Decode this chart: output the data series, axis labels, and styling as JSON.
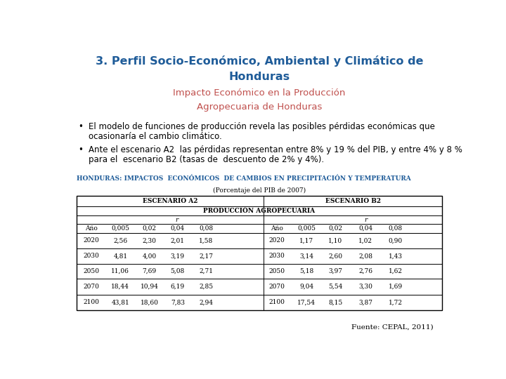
{
  "title_line1": "3. Perfil Socio-Económico, Ambiental y Climático de",
  "title_line2": "Honduras",
  "subtitle_line1": "Impacto Económico en la Producción",
  "subtitle_line2": "Agropecuaria de Honduras",
  "title_color": "#1F5C99",
  "subtitle_color": "#C0504D",
  "bullet1_line1": "El modelo de funciones de producción revela las posibles pérdidas económicas que",
  "bullet1_line2": "ocasionaría el cambio climático.",
  "bullet2_line1": "Ante el escenario A2  las pérdidas representan entre 8% y 19 % del PIB, y entre 4% y 8 %",
  "bullet2_line2": "para el  escenario B2 (tasas de  descuento de 2% y 4%).",
  "table_title": "HONDURAS: IMPACTOS  ECONÓMICOS  DE CAMBIOS EN PRECIPITACIÓN Y TEMPERATURA",
  "table_subtitle": "(Porcentaje del PIB de 2007)",
  "table_title_color": "#1F5C99",
  "background_color": "#FFFFFF",
  "source_text": "Fuente: CEPAL, 2011)",
  "escenario_a2_header": "ESCENARIO A2",
  "escenario_b2_header": "ESCENARIO B2",
  "produccion_header": "PRODUCCIÓN AGROPECUARIA",
  "col_headers_a2": [
    "Año",
    "0,005",
    "0,02",
    "0,04",
    "0,08"
  ],
  "col_headers_b2": [
    "Año",
    "0,005",
    "0,02",
    "0,04",
    "0,08"
  ],
  "r_label": "r",
  "rows_a2": [
    [
      "2020",
      "2,56",
      "2,30",
      "2,01",
      "1,58"
    ],
    [
      "2030",
      "4,81",
      "4,00",
      "3,19",
      "2,17"
    ],
    [
      "2050",
      "11,06",
      "7,69",
      "5,08",
      "2,71"
    ],
    [
      "2070",
      "18,44",
      "10,94",
      "6,19",
      "2,85"
    ],
    [
      "2100",
      "43,81",
      "18,60",
      "7,83",
      "2,94"
    ]
  ],
  "rows_b2": [
    [
      "2020",
      "1,17",
      "1,10",
      "1,02",
      "0,90"
    ],
    [
      "2030",
      "3,14",
      "2,60",
      "2,08",
      "1,43"
    ],
    [
      "2050",
      "5,18",
      "3,97",
      "2,76",
      "1,62"
    ],
    [
      "2070",
      "9,04",
      "5,54",
      "3,30",
      "1,69"
    ],
    [
      "2100",
      "17,54",
      "8,15",
      "3,87",
      "1,72"
    ]
  ],
  "title_fs": 11.5,
  "subtitle_fs": 9.5,
  "bullet_fs": 8.5,
  "table_title_fs": 6.5,
  "table_fs": 6.5
}
